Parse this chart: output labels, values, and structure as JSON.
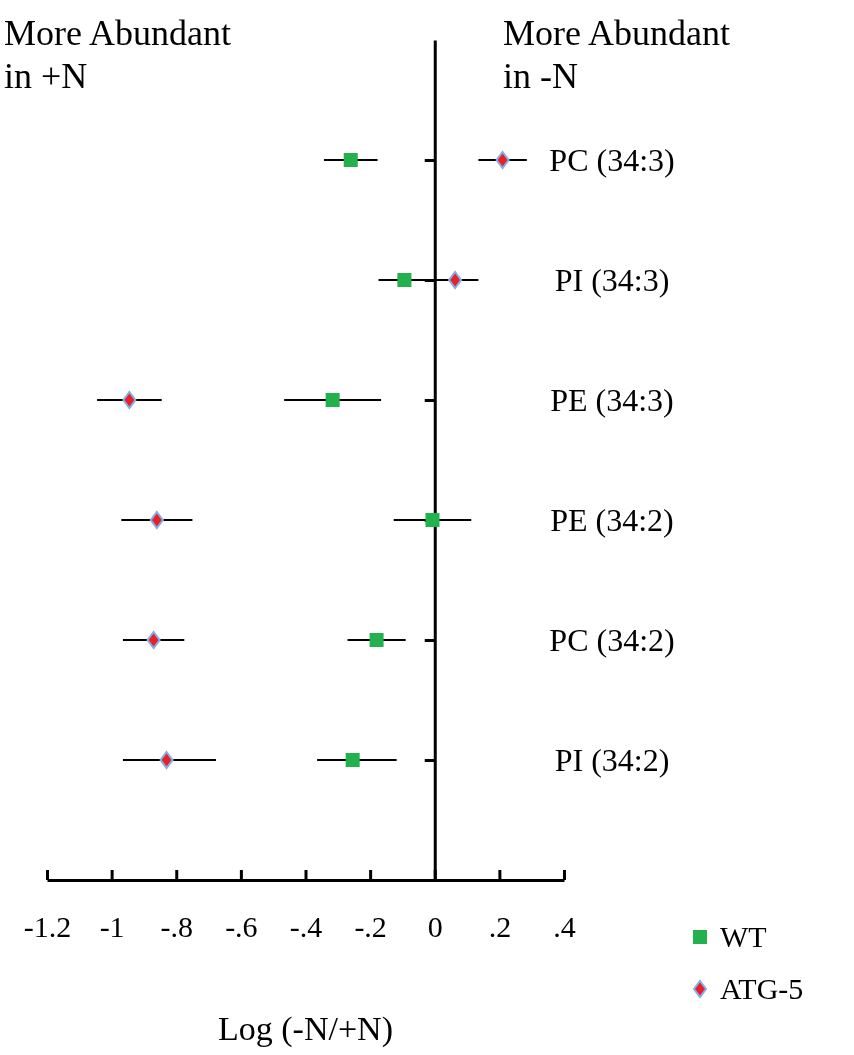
{
  "chart_data": {
    "type": "scatter",
    "orientation": "horizontal",
    "xlabel": "Log (-N/+N)",
    "categories": [
      "PC (34:3)",
      "PI (34:3)",
      "PE (34:3)",
      "PE (34:2)",
      "PC (34:2)",
      "PI (34:2)"
    ],
    "series": [
      {
        "name": "WT",
        "color": "#22b14c",
        "marker": "square",
        "values": [
          -0.26,
          -0.094,
          -0.316,
          -0.007,
          -0.18,
          -0.254
        ],
        "errors": [
          0.083,
          0.08,
          0.15,
          0.12,
          0.09,
          [
            -0.364,
            -0.118
          ]
        ]
      },
      {
        "name": "ATG-5",
        "color": "#e8202a",
        "marker": "diamond",
        "values": [
          0.21,
          0.063,
          -0.945,
          -0.86,
          -0.87,
          -0.83
        ],
        "errors": [
          0.075,
          0.072,
          0.1,
          0.11,
          0.095,
          [
            -0.965,
            -0.677
          ]
        ]
      }
    ],
    "xlim": [
      -1.2,
      0.4
    ],
    "xticks": [
      -1.2,
      -1,
      {
        "value": -0.8,
        "label": "-.8"
      },
      {
        "value": -0.6,
        "label": "-.6"
      },
      {
        "value": -0.4,
        "label": "-.4"
      },
      {
        "value": -0.2,
        "label": "-.2"
      },
      0,
      {
        "value": 0.2,
        "label": ".2"
      },
      {
        "value": 0.4,
        "label": ".4"
      }
    ],
    "annotations": [
      "More Abundant in +N",
      "More Abundant in -N"
    ],
    "legend": "bottom right"
  }
}
